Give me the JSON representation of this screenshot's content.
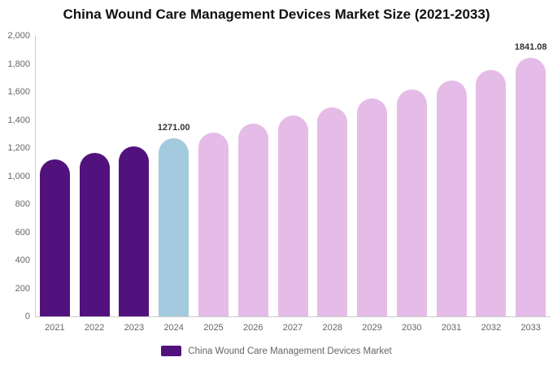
{
  "title": "China Wound Care Management Devices Market Size (2021-2033)",
  "chart_data": {
    "type": "bar",
    "title": "China Wound Care Management Devices Market Size (2021-2033)",
    "categories": [
      "2021",
      "2022",
      "2023",
      "2024",
      "2025",
      "2026",
      "2027",
      "2028",
      "2029",
      "2030",
      "2031",
      "2032",
      "2033"
    ],
    "values": [
      1120,
      1168,
      1212,
      1271.0,
      1312,
      1372,
      1430,
      1490,
      1555,
      1618,
      1680,
      1755,
      1841.08
    ],
    "series_name": "China Wound Care Management Devices Market",
    "ylim": [
      0,
      2000
    ],
    "ytick_step": 200,
    "ytick_labels": [
      "0",
      "200",
      "400",
      "600",
      "800",
      "1,000",
      "1,200",
      "1,400",
      "1,600",
      "1,800",
      "2,000"
    ],
    "data_labels": {
      "2024": "1271.00",
      "2033": "1841.08"
    },
    "bar_roles": [
      "past",
      "past",
      "past",
      "current",
      "forecast",
      "forecast",
      "forecast",
      "forecast",
      "forecast",
      "forecast",
      "forecast",
      "forecast",
      "forecast"
    ],
    "colors": {
      "past": "#52127E",
      "current": "#A3CADF",
      "forecast": "#E5BCE7"
    },
    "grid": false,
    "legend_position": "bottom",
    "xlabel": "",
    "ylabel": ""
  },
  "legend": {
    "label": "China Wound Care Management Devices Market",
    "swatch_color": "#52127E"
  }
}
